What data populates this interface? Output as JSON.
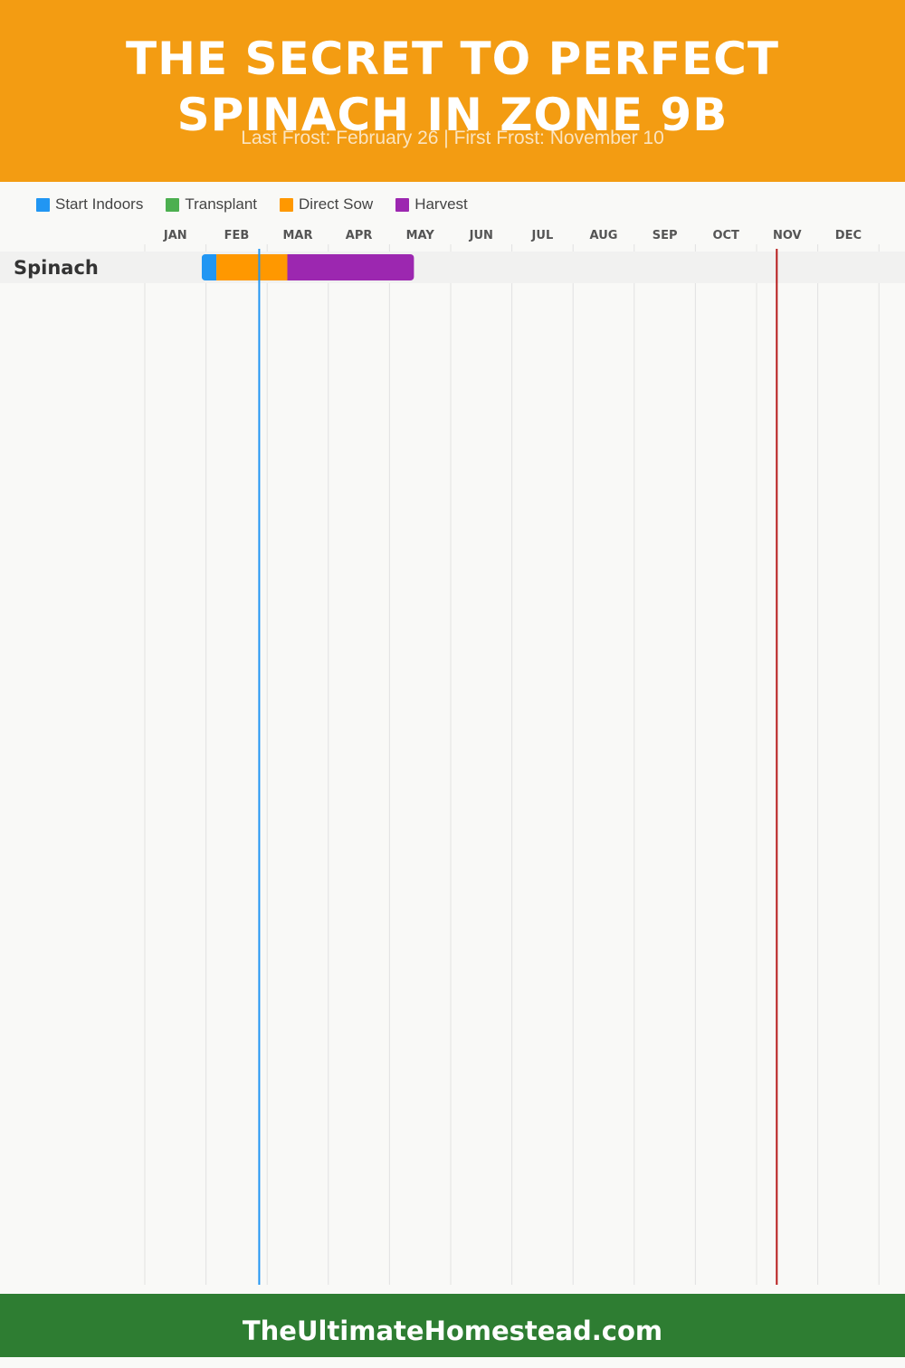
{
  "header": {
    "title_line1": "THE SECRET TO PERFECT",
    "title_line2": "SPINACH IN ZONE 9B",
    "subtitle": "Last Frost: February 26 | First Frost: November 10"
  },
  "footer": {
    "text": "TheUltimateHomestead.com"
  },
  "colors": {
    "header_bg": "#f39c12",
    "footer_bg": "#2e7d32",
    "start_indoors": "#2196f3",
    "transplant": "#4caf50",
    "direct_sow": "#ff9800",
    "harvest": "#9c27b0",
    "last_frost_line": "#2196f3",
    "first_frost_line": "#b71c1c"
  },
  "legend": [
    {
      "label": "Start Indoors",
      "color": "#2196f3"
    },
    {
      "label": "Transplant",
      "color": "#4caf50"
    },
    {
      "label": "Direct Sow",
      "color": "#ff9800"
    },
    {
      "label": "Harvest",
      "color": "#9c27b0"
    }
  ],
  "chart_data": {
    "type": "gantt",
    "months": [
      "JAN",
      "FEB",
      "MAR",
      "APR",
      "MAY",
      "JUN",
      "JUL",
      "AUG",
      "SEP",
      "OCT",
      "NOV",
      "DEC"
    ],
    "unit": "month (0 = Jan 1, 12 = Dec 31)",
    "rows": [
      {
        "label": "Spinach",
        "bars": [
          {
            "phase": "Start Indoors",
            "start": 0.93,
            "end": 1.17
          },
          {
            "phase": "Direct Sow",
            "start": 1.17,
            "end": 2.33
          },
          {
            "phase": "Harvest",
            "start": 2.33,
            "end": 4.4
          }
        ]
      }
    ],
    "markers": [
      {
        "name": "last_frost",
        "date": "February 26",
        "value": 1.87
      },
      {
        "name": "first_frost",
        "date": "November 10",
        "value": 10.33
      }
    ],
    "grid": true
  }
}
